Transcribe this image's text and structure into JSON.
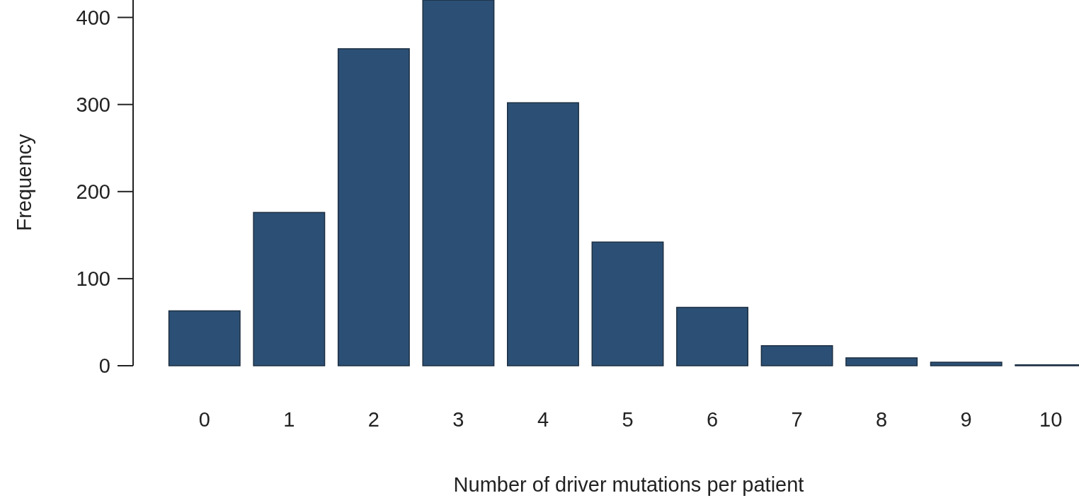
{
  "chart_data": {
    "type": "bar",
    "xlabel": "Number of driver mutations per patient",
    "ylabel": "Frequency",
    "categories": [
      "0",
      "1",
      "2",
      "3",
      "4",
      "5",
      "6",
      "7",
      "8",
      "9",
      "10"
    ],
    "values": [
      63,
      176,
      364,
      420,
      302,
      142,
      67,
      23,
      9,
      4,
      1
    ],
    "color": "#2c5075",
    "ylim": [
      0,
      420
    ],
    "yticks": [
      0,
      100,
      200,
      300,
      400
    ],
    "grid": false
  }
}
